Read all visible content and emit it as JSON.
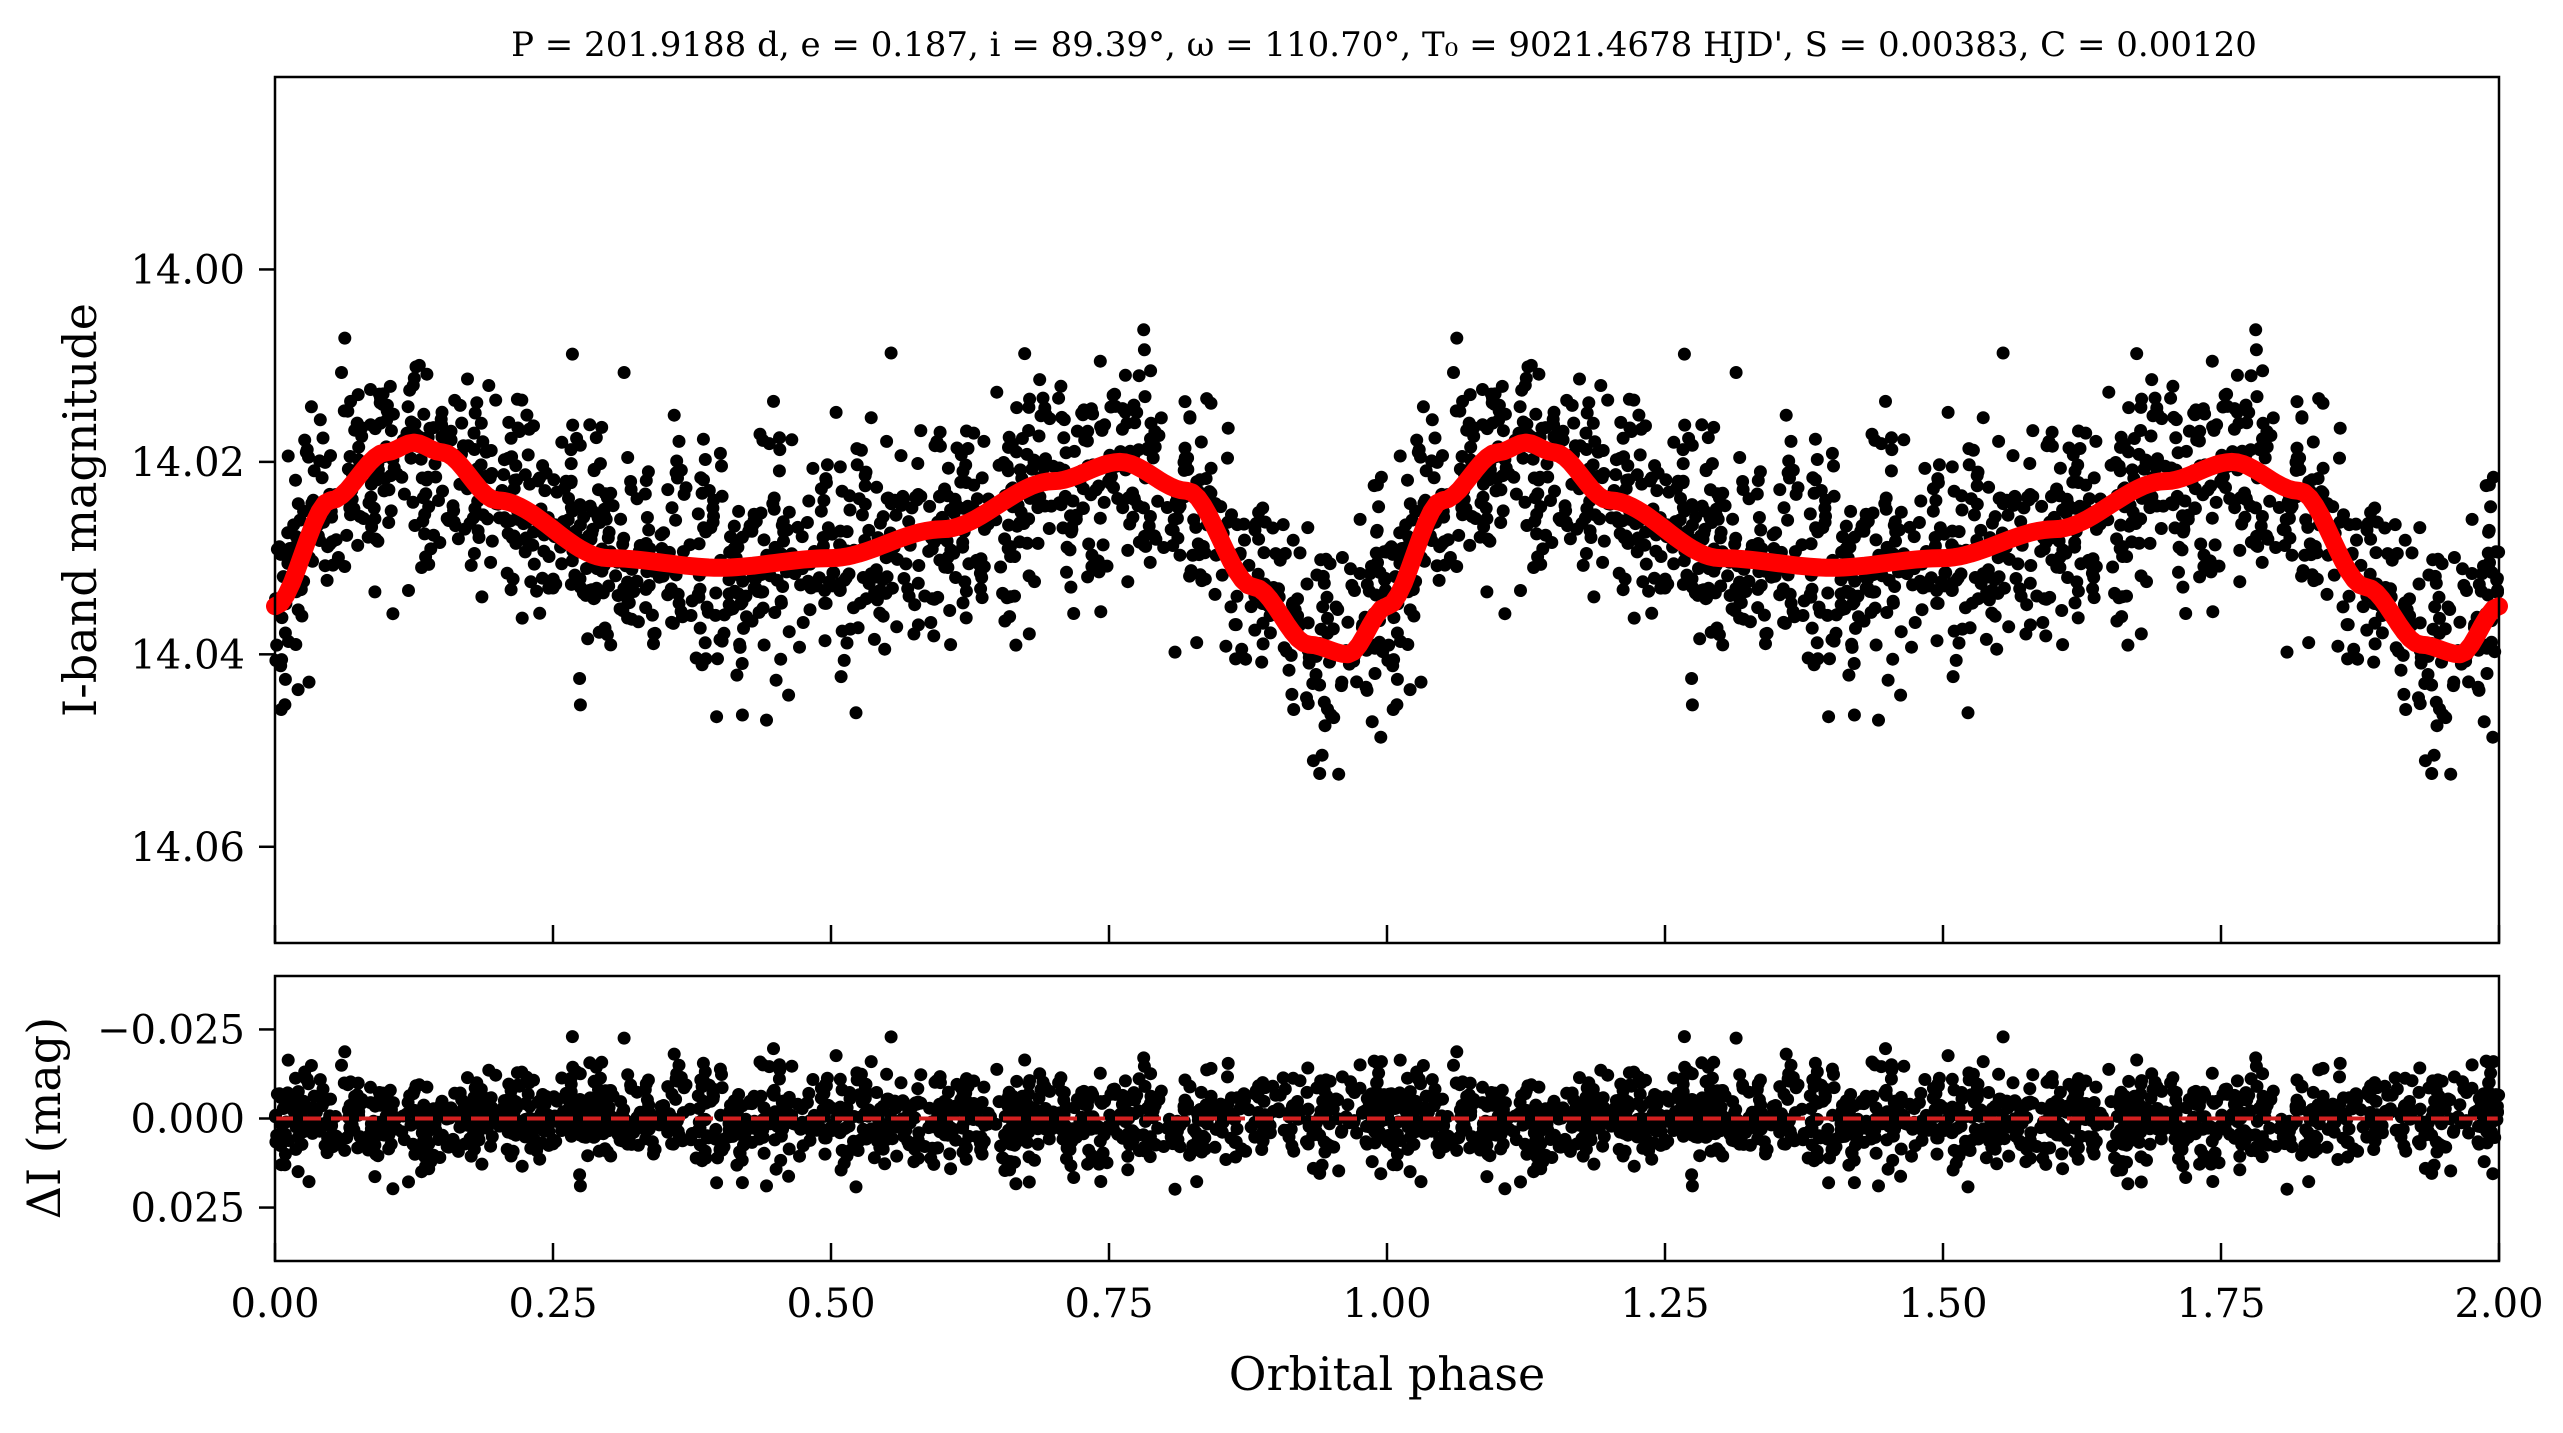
{
  "chart_data": [
    {
      "type": "scatter",
      "panel": "top",
      "title": "P = 201.9188 d, e = 0.187, i = 89.39°, ω = 110.70°, T₀ = 9021.4678 HJD', S = 0.00383, C = 0.00120",
      "xlabel": "",
      "ylabel": "I-band magnitude",
      "xlim": [
        0.0,
        2.0
      ],
      "ylim": [
        14.07,
        13.98
      ],
      "y_inverted": true,
      "yticks": [
        "14.00",
        "14.02",
        "14.04",
        "14.06"
      ],
      "grid": false,
      "series": [
        {
          "kind": "points",
          "color": "#000000",
          "phase_one_cycle": {
            "phase": [
              0.0,
              0.05,
              0.1,
              0.125,
              0.15,
              0.2,
              0.3,
              0.4,
              0.5,
              0.6,
              0.7,
              0.76,
              0.82,
              0.88,
              0.93,
              0.965,
              1.0
            ],
            "mag": [
              14.035,
              14.024,
              14.019,
              14.018,
              14.019,
              14.024,
              14.03,
              14.031,
              14.03,
              14.027,
              14.022,
              14.02,
              14.023,
              14.033,
              14.039,
              14.04,
              14.035
            ],
            "scatter_sd_mag": 0.006,
            "repeats_in_x_range": 2
          }
        },
        {
          "kind": "model-curve",
          "color": "#ff0000",
          "phase": [
            0.0,
            0.05,
            0.1,
            0.125,
            0.15,
            0.2,
            0.3,
            0.4,
            0.5,
            0.6,
            0.7,
            0.76,
            0.82,
            0.88,
            0.93,
            0.965,
            1.0
          ],
          "mag": [
            14.035,
            14.024,
            14.019,
            14.018,
            14.019,
            14.024,
            14.03,
            14.031,
            14.03,
            14.027,
            14.022,
            14.02,
            14.023,
            14.033,
            14.039,
            14.04,
            14.035
          ]
        }
      ]
    },
    {
      "type": "scatter",
      "panel": "bottom",
      "xlabel": "Orbital phase",
      "ylabel": "ΔI (mag)",
      "xlim": [
        0.0,
        2.0
      ],
      "ylim": [
        0.04,
        -0.04
      ],
      "y_inverted": true,
      "xticks": [
        "0.00",
        "0.25",
        "0.50",
        "0.75",
        "1.00",
        "1.25",
        "1.50",
        "1.75",
        "2.00"
      ],
      "yticks": [
        "−0.025",
        "0.000",
        "0.025"
      ],
      "grid": false,
      "series": [
        {
          "kind": "residual-points",
          "color": "#000000",
          "scatter_sd_mag": 0.007
        },
        {
          "kind": "zero-line",
          "color": "#d42020",
          "style": "dashed",
          "y": 0.0
        }
      ]
    }
  ]
}
